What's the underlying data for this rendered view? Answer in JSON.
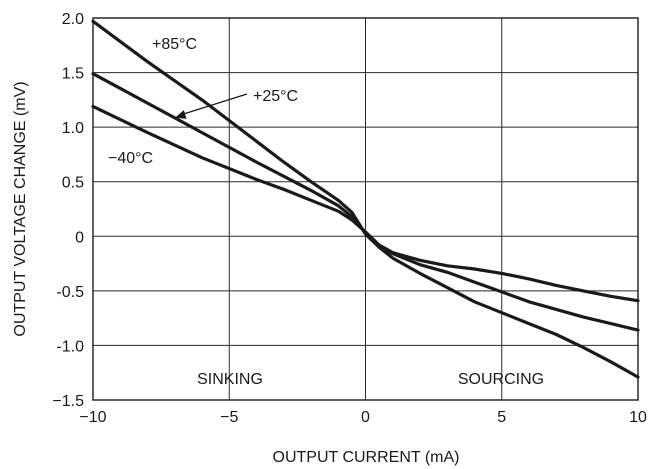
{
  "chart_data": {
    "type": "line",
    "xlabel": "OUTPUT CURRENT (mA)",
    "ylabel": "OUTPUT VOLTAGE CHANGE (mV)",
    "xlim": [
      -10,
      10
    ],
    "ylim": [
      -1.5,
      2.0
    ],
    "xticks": [
      -10,
      -5,
      0,
      5,
      10
    ],
    "xtick_labels": [
      "−10",
      "−5",
      "0",
      "5",
      "10"
    ],
    "yticks": [
      2.0,
      1.5,
      1.0,
      0.5,
      0,
      -0.5,
      -1.0,
      -1.5
    ],
    "ytick_labels": [
      "2.0",
      "1.5",
      "1.0",
      "0.5",
      "0",
      "-0.5",
      "-1.0",
      "−1.5"
    ],
    "grid": true,
    "series": [
      {
        "name": "+85°C",
        "x": [
          -10,
          -8,
          -6,
          -4,
          -3,
          -2,
          -1,
          -0.5,
          0,
          0.5,
          1,
          2,
          3,
          4,
          5,
          6,
          7,
          8,
          9,
          10
        ],
        "y": [
          1.97,
          1.6,
          1.25,
          0.87,
          0.68,
          0.5,
          0.33,
          0.22,
          0.02,
          -0.1,
          -0.2,
          -0.34,
          -0.47,
          -0.6,
          -0.7,
          -0.8,
          -0.9,
          -1.02,
          -1.15,
          -1.29
        ]
      },
      {
        "name": "+25°C",
        "x": [
          -10,
          -8,
          -6,
          -4,
          -3,
          -2,
          -1,
          -0.5,
          0,
          0.5,
          1,
          2,
          3,
          4,
          5,
          6,
          7,
          8,
          9,
          10
        ],
        "y": [
          1.49,
          1.22,
          0.95,
          0.68,
          0.55,
          0.42,
          0.28,
          0.18,
          0.03,
          -0.09,
          -0.16,
          -0.26,
          -0.33,
          -0.42,
          -0.51,
          -0.6,
          -0.67,
          -0.74,
          -0.8,
          -0.86
        ]
      },
      {
        "name": "−40°C",
        "x": [
          -10,
          -8,
          -6,
          -4,
          -3,
          -2,
          -1,
          -0.5,
          0,
          0.5,
          1,
          2,
          3,
          4,
          5,
          6,
          7,
          8,
          9,
          10
        ],
        "y": [
          1.19,
          0.95,
          0.72,
          0.52,
          0.43,
          0.33,
          0.23,
          0.15,
          0.04,
          -0.08,
          -0.15,
          -0.22,
          -0.27,
          -0.3,
          -0.34,
          -0.39,
          -0.45,
          -0.5,
          -0.55,
          -0.59
        ]
      }
    ],
    "annotations": [
      "+85°C",
      "+25°C",
      "−40°C",
      "SINKING",
      "SOURCING"
    ]
  }
}
